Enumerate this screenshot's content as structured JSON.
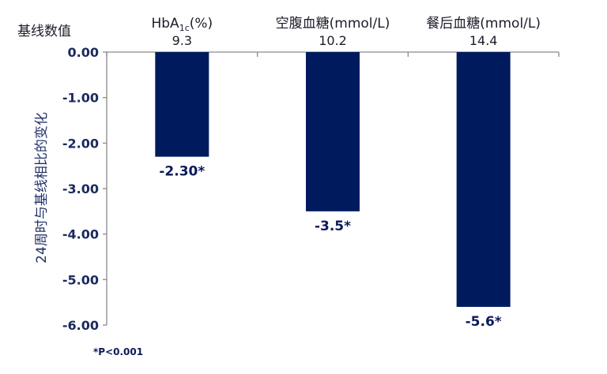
{
  "baseline_title": "基线数值",
  "footnote": "*P<0.001",
  "colors": {
    "bar": "#001a5e",
    "axis": "#8a8a8a"
  },
  "chart_data": {
    "type": "bar",
    "ylabel": "24周时与基线相比的变化",
    "ylim": [
      -6,
      0
    ],
    "y_ticks": [
      "0.00",
      "-1.00",
      "-2.00",
      "-3.00",
      "-4.00",
      "-5.00",
      "-6.00"
    ],
    "y_tick_values": [
      0,
      -1,
      -2,
      -3,
      -4,
      -5,
      -6
    ],
    "categories": [
      {
        "name_main": "HbA",
        "name_sub": "1c",
        "name_tail": "(%)",
        "baseline": "9.3",
        "value": -2.3,
        "label": "-2.30*"
      },
      {
        "name_main": "空腹血糖(mmol/L)",
        "name_sub": "",
        "name_tail": "",
        "baseline": "10.2",
        "value": -3.5,
        "label": "-3.5*"
      },
      {
        "name_main": "餐后血糖(mmol/L)",
        "name_sub": "",
        "name_tail": "",
        "baseline": "14.4",
        "value": -5.6,
        "label": "-5.6*"
      }
    ]
  }
}
